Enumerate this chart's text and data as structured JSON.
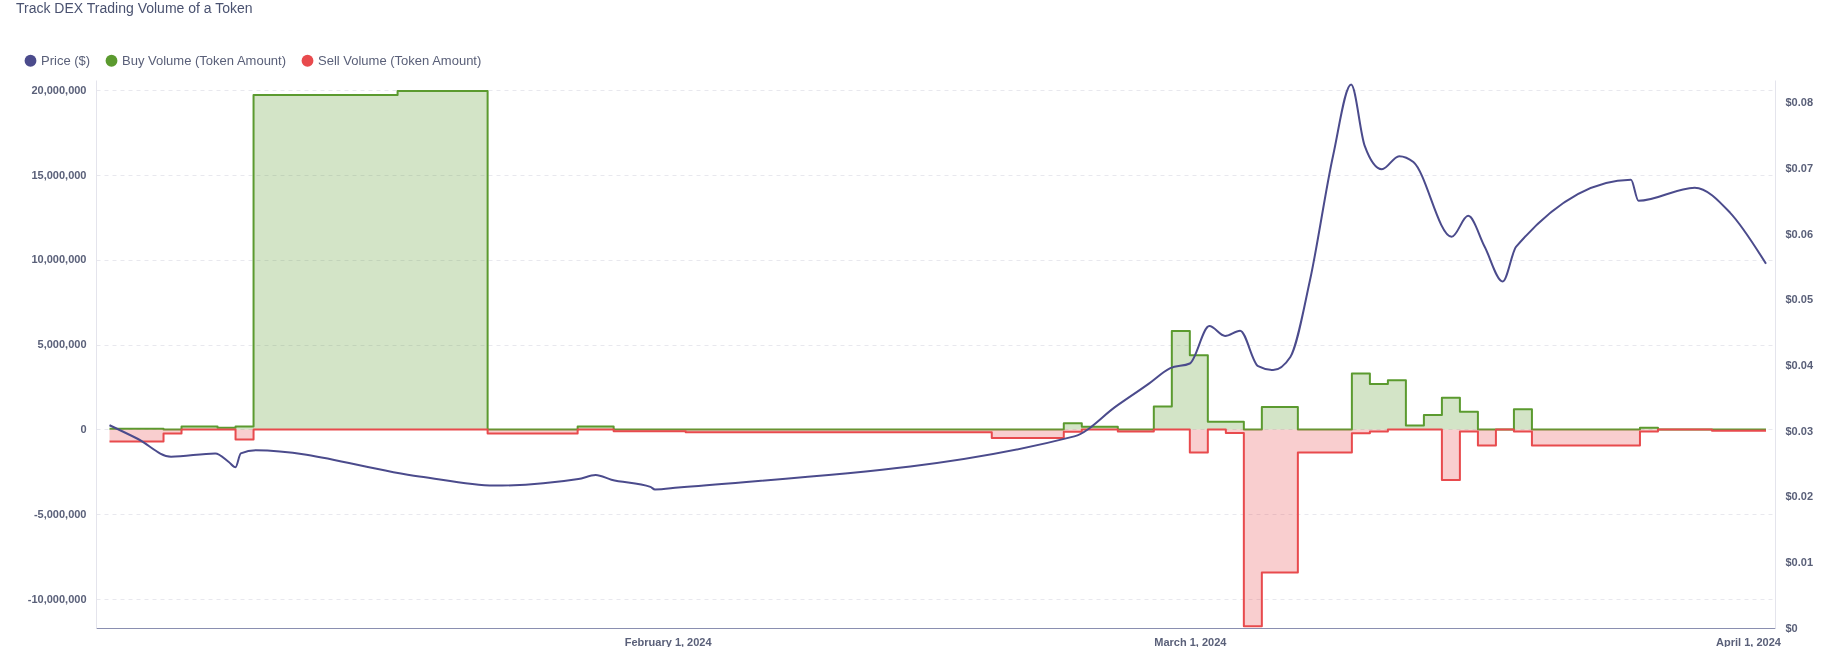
{
  "chart_data": {
    "type": "area",
    "title": "Track DEX Trading Volume of a Token",
    "xlim": [
      "2023-12-31T06:00",
      "2024-04-02T12:00"
    ],
    "xticks": [
      {
        "value": "2024-02-01",
        "label": "February 1, 2024"
      },
      {
        "value": "2024-03-01",
        "label": "March 1, 2024"
      },
      {
        "value": "2024-04-01",
        "label": "April 1, 2024"
      }
    ],
    "ylim": [
      -11700000,
      20600000
    ],
    "yticks": [
      {
        "value": -10000000,
        "label": "-10,000,000"
      },
      {
        "value": -5000000,
        "label": "-5,000,000"
      },
      {
        "value": 0,
        "label": "0"
      },
      {
        "value": 5000000,
        "label": "5,000,000"
      },
      {
        "value": 10000000,
        "label": "10,000,000"
      },
      {
        "value": 15000000,
        "label": "15,000,000"
      },
      {
        "value": 20000000,
        "label": "20,000,000"
      }
    ],
    "y2lim": [
      0,
      0.0835
    ],
    "y2ticks": [
      {
        "value": 0,
        "label": "$0"
      },
      {
        "value": 0.01,
        "label": "$0.01"
      },
      {
        "value": 0.02,
        "label": "$0.02"
      },
      {
        "value": 0.03,
        "label": "$0.03"
      },
      {
        "value": 0.04,
        "label": "$0.04"
      },
      {
        "value": 0.05,
        "label": "$0.05"
      },
      {
        "value": 0.06,
        "label": "$0.06"
      },
      {
        "value": 0.07,
        "label": "$0.07"
      },
      {
        "value": 0.08,
        "label": "$0.08"
      }
    ],
    "grid": "y",
    "legend": "top left",
    "series": [
      {
        "name": "Price ($)",
        "type": "line",
        "axis": "y2",
        "color": "#4b4b8c",
        "x": [
          "2024-01-01T00:00",
          "2024-01-02T14:00",
          "2024-01-04T10:00",
          "2024-01-06T21:00",
          "2024-01-07T15:00",
          "2024-01-08T00:00",
          "2024-01-08T07:00",
          "2024-01-09T03:00",
          "2024-01-18T05:00",
          "2024-01-22T09:00",
          "2024-01-27T01:00",
          "2024-01-28T00:00",
          "2024-01-28T21:00",
          "2024-01-31T01:00",
          "2024-01-31T07:00",
          "2024-02-01T14:00",
          "2024-02-23T14:00",
          "2024-02-25T22:00",
          "2024-02-27T17:00",
          "2024-02-28T22:00",
          "2024-03-01T00:00",
          "2024-03-02T02:00",
          "2024-03-02T23:00",
          "2024-03-03T19:00",
          "2024-03-04T19:00",
          "2024-03-05T15:00",
          "2024-03-06T14:00",
          "2024-03-07T16:00",
          "2024-03-08T23:00",
          "2024-03-09T23:00",
          "2024-03-10T17:00",
          "2024-03-11T16:00",
          "2024-03-12T15:00",
          "2024-03-13T10:00",
          "2024-03-15T13:00",
          "2024-03-16T11:00",
          "2024-03-17T09:00",
          "2024-03-18T09:00",
          "2024-03-19T03:00",
          "2024-03-25T12:00",
          "2024-03-25T22:00",
          "2024-03-29T01:00",
          "2024-03-31T00:00",
          "2024-04-02T00:00"
        ],
        "values": [
          0.0309,
          0.0288,
          0.0261,
          0.0266,
          0.0253,
          0.0245,
          0.0266,
          0.0271,
          0.0231,
          0.0217,
          0.0227,
          0.0233,
          0.0226,
          0.0215,
          0.0211,
          0.0214,
          0.0292,
          0.0338,
          0.0372,
          0.0396,
          0.0403,
          0.046,
          0.0445,
          0.0453,
          0.0399,
          0.0393,
          0.0413,
          0.0529,
          0.072,
          0.0828,
          0.0735,
          0.0699,
          0.0719,
          0.071,
          0.0596,
          0.0628,
          0.0581,
          0.0528,
          0.0581,
          0.0683,
          0.0651,
          0.0671,
          0.0633,
          0.0555
        ]
      },
      {
        "name": "Buy Volume (Token Amount)",
        "color": "#5b9a2f",
        "x": [
          "2024-01-01",
          "2024-01-04",
          "2024-01-05",
          "2024-01-07",
          "2024-01-08",
          "2024-01-09",
          "2024-01-17",
          "2024-01-22",
          "2024-01-27",
          "2024-01-29",
          "2024-02-02",
          "2024-02-19",
          "2024-02-23",
          "2024-02-24",
          "2024-02-26",
          "2024-02-28",
          "2024-02-29",
          "2024-03-01",
          "2024-03-02",
          "2024-03-03",
          "2024-03-04",
          "2024-03-05",
          "2024-03-07",
          "2024-03-10",
          "2024-03-11",
          "2024-03-12",
          "2024-03-13",
          "2024-03-14",
          "2024-03-15",
          "2024-03-16",
          "2024-03-17",
          "2024-03-18",
          "2024-03-19",
          "2024-03-20",
          "2024-03-26",
          "2024-03-27",
          "2024-03-30",
          "2024-04-02"
        ],
        "values": [
          50000,
          0,
          170000,
          100000,
          170000,
          19720000,
          19950000,
          0,
          170000,
          0,
          0,
          0,
          370000,
          160000,
          0,
          1360000,
          5800000,
          4370000,
          450000,
          450000,
          0,
          1330000,
          0,
          3300000,
          2680000,
          2900000,
          240000,
          850000,
          1870000,
          1050000,
          0,
          0,
          1200000,
          0,
          110000,
          0,
          0,
          0
        ]
      },
      {
        "name": "Sell Volume (Token Amount)",
        "color": "#e84a4d",
        "x": [
          "2024-01-01",
          "2024-01-04",
          "2024-01-05",
          "2024-01-07",
          "2024-01-08",
          "2024-01-09",
          "2024-01-17",
          "2024-01-22",
          "2024-01-27",
          "2024-01-29",
          "2024-02-02",
          "2024-02-19",
          "2024-02-23",
          "2024-02-24",
          "2024-02-26",
          "2024-02-28",
          "2024-02-29",
          "2024-03-01",
          "2024-03-02",
          "2024-03-03",
          "2024-03-04",
          "2024-03-05",
          "2024-03-07",
          "2024-03-10",
          "2024-03-11",
          "2024-03-12",
          "2024-03-13",
          "2024-03-14",
          "2024-03-15",
          "2024-03-16",
          "2024-03-17",
          "2024-03-18",
          "2024-03-19",
          "2024-03-20",
          "2024-03-26",
          "2024-03-27",
          "2024-03-30",
          "2024-04-02"
        ],
        "values": [
          -710000,
          -230000,
          0,
          0,
          -590000,
          0,
          0,
          -230000,
          0,
          -100000,
          -160000,
          -500000,
          -140000,
          0,
          -120000,
          0,
          0,
          -1360000,
          0,
          -200000,
          -11600000,
          -8430000,
          -1360000,
          -220000,
          -120000,
          0,
          0,
          0,
          -2970000,
          -120000,
          -940000,
          0,
          -120000,
          -940000,
          -120000,
          0,
          -70000,
          -70000
        ]
      }
    ]
  }
}
